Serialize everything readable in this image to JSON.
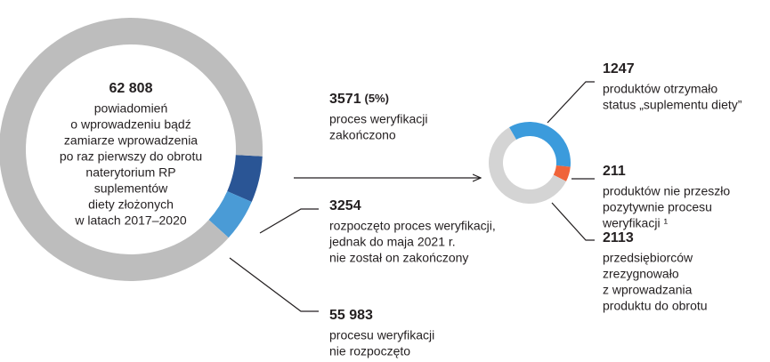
{
  "chart_data": [
    {
      "type": "donut",
      "total": 62808,
      "total_label": "62 808",
      "center_text": [
        "powiadomień",
        "o wprowadzeniu bądź",
        "zamiarze wprowadzenia",
        "po raz pierwszy do obrotu",
        "naterytorium RP",
        "suplementów",
        "diety złożonych",
        "w latach 2017–2020"
      ],
      "values": [
        3571,
        3254,
        55983
      ],
      "value_labels": [
        "3571",
        "3254",
        "55 983"
      ],
      "notes": [
        "(5%)"
      ],
      "labels": [
        [
          "proces weryfikacji",
          "zakończono"
        ],
        [
          "rozpoczęto proces weryfikacji,",
          "jednak do maja 2021 r.",
          "nie został on zakończony"
        ],
        [
          "procesu weryfikacji",
          "nie rozpoczęto"
        ]
      ],
      "colors": [
        "#2a5595",
        "#4a9bd6",
        "#bdbdbd"
      ]
    },
    {
      "type": "donut",
      "values": [
        1247,
        211,
        2113
      ],
      "value_labels": [
        "1247",
        "211",
        "2113"
      ],
      "labels": [
        [
          "produktów otrzymało",
          "status „suplementu diety”"
        ],
        [
          "produktów nie przeszło",
          "pozytywnie procesu",
          "weryfikacji ¹"
        ],
        [
          "przedsiębiorców",
          "zrezygnowało",
          "z wprowadzania",
          "produktu do obrotu"
        ]
      ],
      "colors": [
        "#3b9bdc",
        "#f0643a",
        "#d4d4d4"
      ]
    }
  ]
}
